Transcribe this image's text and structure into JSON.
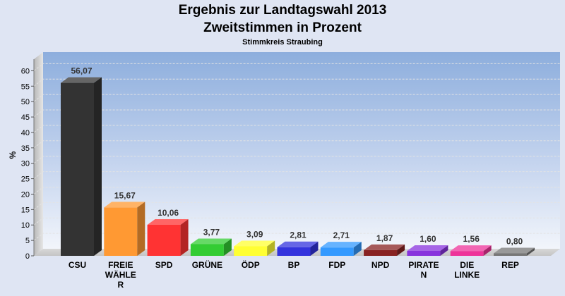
{
  "chart_data": {
    "type": "bar",
    "title": "Ergebnis zur Landtagswahl 2013",
    "title_line2": "Zweitstimmen in Prozent",
    "subtitle": "Stimmkreis Straubing",
    "xlabel": "",
    "ylabel": "%",
    "ylim": [
      0,
      65
    ],
    "yticks": [
      0,
      5,
      10,
      15,
      20,
      25,
      30,
      35,
      40,
      45,
      50,
      55,
      60
    ],
    "grid": true,
    "categories": [
      [
        "CSU"
      ],
      [
        "FREIE",
        "WÄHLE",
        "R"
      ],
      [
        "SPD"
      ],
      [
        "GRÜNE"
      ],
      [
        "ÖDP"
      ],
      [
        "BP"
      ],
      [
        "FDP"
      ],
      [
        "NPD"
      ],
      [
        "PIRATE",
        "N"
      ],
      [
        "DIE",
        "LINKE"
      ],
      [
        "REP"
      ]
    ],
    "values": [
      56.07,
      15.67,
      10.06,
      3.77,
      3.09,
      2.81,
      2.71,
      1.87,
      1.6,
      1.56,
      0.8
    ],
    "value_labels": [
      "56,07",
      "15,67",
      "10,06",
      "3,77",
      "3,09",
      "2,81",
      "2,71",
      "1,87",
      "1,60",
      "1,56",
      "0,80"
    ],
    "colors": [
      "#333333",
      "#ff9933",
      "#ff3333",
      "#33cc33",
      "#ffff33",
      "#3333dd",
      "#3399ff",
      "#882222",
      "#8833dd",
      "#ee3399",
      "#777777"
    ]
  }
}
